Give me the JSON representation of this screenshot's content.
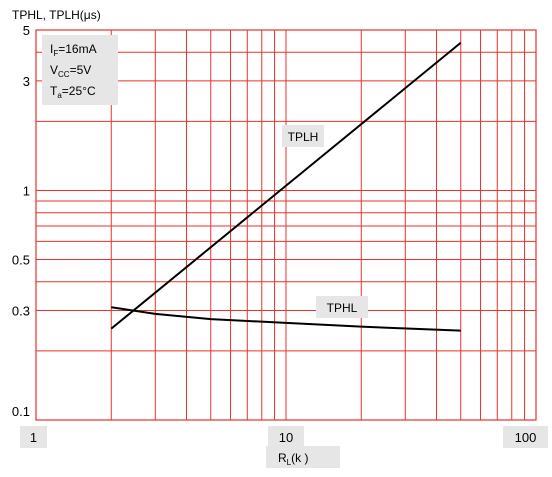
{
  "chart_data": {
    "type": "line",
    "title": "",
    "ylabel": "TPHL, TPLH(μs)",
    "xlabel_main": "R",
    "xlabel_sub": "L",
    "xlabel_tail": "(k )",
    "x_scale": "log",
    "y_scale": "log",
    "xlim": [
      1,
      100
    ],
    "ylim": [
      0.1,
      5
    ],
    "x_ticks": [
      "1",
      "10",
      "100"
    ],
    "y_ticks": [
      "5",
      "3",
      "1",
      "0.5",
      "0.3",
      "0.1"
    ],
    "grid": true,
    "conditions": [
      {
        "main": "I",
        "sub": "F",
        "rest": "=16mA"
      },
      {
        "main": "V",
        "sub": "CC",
        "rest": "=5V"
      },
      {
        "main": "T",
        "sub": "a",
        "rest": "=25°C"
      }
    ],
    "series": [
      {
        "name": "TPLH",
        "x": [
          2,
          50
        ],
        "y": [
          0.25,
          4.4
        ]
      },
      {
        "name": "TPHL",
        "x": [
          2,
          3,
          5,
          10,
          20,
          50
        ],
        "y": [
          0.31,
          0.29,
          0.275,
          0.265,
          0.255,
          0.245
        ]
      }
    ],
    "colors": {
      "grid": "#e8332a",
      "line": "#000000",
      "label_bg": "#e6e6e6"
    }
  }
}
